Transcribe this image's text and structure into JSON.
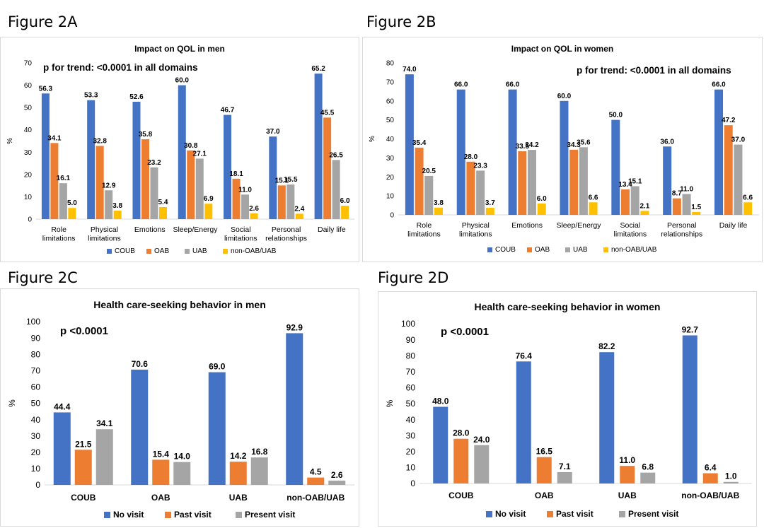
{
  "figures": [
    {
      "label": "Figure 2A"
    },
    {
      "label": "Figure 2B"
    },
    {
      "label": "Figure 2C"
    },
    {
      "label": "Figure 2D"
    }
  ],
  "chart_data": [
    {
      "type": "bar",
      "title": "Impact on QOL in men",
      "annotation": "p for trend: <0.0001 in all domains",
      "ylabel": "%",
      "ylim": [
        0,
        70
      ],
      "yticks": [
        0,
        10,
        20,
        30,
        40,
        50,
        60,
        70
      ],
      "categories": [
        [
          "Role",
          "limitations"
        ],
        [
          "Physical",
          "limitations"
        ],
        [
          "Emotions"
        ],
        [
          "Sleep/Energy"
        ],
        [
          "Social",
          "limitations"
        ],
        [
          "Personal",
          "relationships"
        ],
        [
          "Daily life"
        ]
      ],
      "series": [
        {
          "name": "COUB",
          "color": "#4472C4",
          "values": [
            56.3,
            53.3,
            52.6,
            60.0,
            46.7,
            37.0,
            65.2
          ]
        },
        {
          "name": "OAB",
          "color": "#ED7D31",
          "values": [
            34.1,
            32.8,
            35.8,
            30.8,
            18.1,
            15.1,
            45.5
          ]
        },
        {
          "name": "UAB",
          "color": "#A5A5A5",
          "values": [
            16.1,
            12.9,
            23.2,
            27.1,
            11.0,
            15.5,
            26.5
          ]
        },
        {
          "name": "non-OAB/UAB",
          "color": "#FFC000",
          "values": [
            5.0,
            3.8,
            5.4,
            6.9,
            2.6,
            2.4,
            6.0
          ]
        }
      ],
      "grid": false,
      "legend": "bottom"
    },
    {
      "type": "bar",
      "title": "Impact on QOL in women",
      "annotation": "p for trend: <0.0001 in all domains",
      "ylabel": "%",
      "ylim": [
        0,
        80
      ],
      "yticks": [
        0,
        10,
        20,
        30,
        40,
        50,
        60,
        70,
        80
      ],
      "categories": [
        [
          "Role",
          "limitations"
        ],
        [
          "Physical",
          "limitations"
        ],
        [
          "Emotions"
        ],
        [
          "Sleep/Energy"
        ],
        [
          "Social",
          "limitations"
        ],
        [
          "Personal",
          "relationships"
        ],
        [
          "Daily life"
        ]
      ],
      "series": [
        {
          "name": "COUB",
          "color": "#4472C4",
          "values": [
            74.0,
            66.0,
            66.0,
            60.0,
            50.0,
            36.0,
            66.0
          ]
        },
        {
          "name": "OAB",
          "color": "#ED7D31",
          "values": [
            35.4,
            28.0,
            33.5,
            34.3,
            13.4,
            8.7,
            47.2
          ]
        },
        {
          "name": "UAB",
          "color": "#A5A5A5",
          "values": [
            20.5,
            23.3,
            34.2,
            35.6,
            15.1,
            11.0,
            37.0
          ]
        },
        {
          "name": "non-OAB/UAB",
          "color": "#FFC000",
          "values": [
            3.8,
            3.7,
            6.0,
            6.6,
            2.1,
            1.5,
            6.6
          ]
        }
      ],
      "grid": false,
      "legend": "bottom"
    },
    {
      "type": "bar",
      "title": "Health care-seeking behavior in men",
      "annotation": "p <0.0001",
      "ylabel": "%",
      "ylim": [
        0,
        100
      ],
      "yticks": [
        0,
        10,
        20,
        30,
        40,
        50,
        60,
        70,
        80,
        90,
        100
      ],
      "categories": [
        [
          "COUB"
        ],
        [
          "OAB"
        ],
        [
          "UAB"
        ],
        [
          "non-OAB/UAB"
        ]
      ],
      "series": [
        {
          "name": "No visit",
          "color": "#4472C4",
          "values": [
            44.4,
            70.6,
            69.0,
            92.9
          ]
        },
        {
          "name": "Past visit",
          "color": "#ED7D31",
          "values": [
            21.5,
            15.4,
            14.2,
            4.5
          ]
        },
        {
          "name": "Present visit",
          "color": "#A5A5A5",
          "values": [
            34.1,
            14.0,
            16.8,
            2.6
          ]
        }
      ],
      "grid": false,
      "legend": "bottom"
    },
    {
      "type": "bar",
      "title": "Health care-seeking behavior in women",
      "annotation": "p <0.0001",
      "ylabel": "%",
      "ylim": [
        0,
        100
      ],
      "yticks": [
        0,
        10,
        20,
        30,
        40,
        50,
        60,
        70,
        80,
        90,
        100
      ],
      "categories": [
        [
          "COUB"
        ],
        [
          "OAB"
        ],
        [
          "UAB"
        ],
        [
          "non-OAB/UAB"
        ]
      ],
      "series": [
        {
          "name": "No visit",
          "color": "#4472C4",
          "values": [
            48.0,
            76.4,
            82.2,
            92.7
          ]
        },
        {
          "name": "Past visit",
          "color": "#ED7D31",
          "values": [
            28.0,
            16.5,
            11.0,
            6.4
          ]
        },
        {
          "name": "Present visit",
          "color": "#A5A5A5",
          "values": [
            24.0,
            7.1,
            6.8,
            1.0
          ]
        }
      ],
      "grid": false,
      "legend": "bottom"
    }
  ]
}
